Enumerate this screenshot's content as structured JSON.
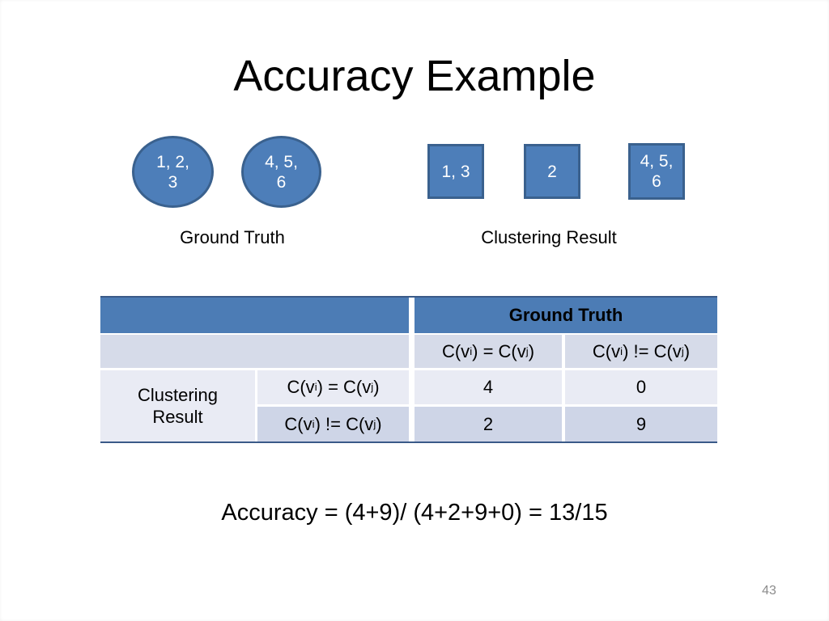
{
  "slide": {
    "title": "Accuracy Example",
    "page_number": "43"
  },
  "colors": {
    "shape_fill": "#4D7EB9",
    "shape_border": "#3A618E",
    "header_blue": "#4C7CB5",
    "band_light": "#E9EBF4",
    "band_mid": "#D6DBE9",
    "band_dark": "#CED5E7",
    "table_border": "#3A5A88",
    "page_num": "#8C8C8C"
  },
  "ground_truth": {
    "label": "Ground Truth",
    "clusters": [
      "1, 2, 3",
      "4, 5, 6"
    ]
  },
  "clustering_result": {
    "label": "Clustering Result",
    "clusters": [
      "1, 3",
      "2",
      "4, 5, 6"
    ]
  },
  "table": {
    "col_group_header": "Ground Truth",
    "row_group_header": "Clustering Result",
    "col_headers": [
      "C(v{i}) = C(v{j})",
      "C(v{i}) != C(v{j})"
    ],
    "row_headers": [
      "C(v{i}) = C(v{j})",
      "C(v{i}) != C(v{j})"
    ],
    "values": [
      [
        "4",
        "0"
      ],
      [
        "2",
        "9"
      ]
    ]
  },
  "formula": "Accuracy = (4+9)/ (4+2+9+0) = 13/15"
}
